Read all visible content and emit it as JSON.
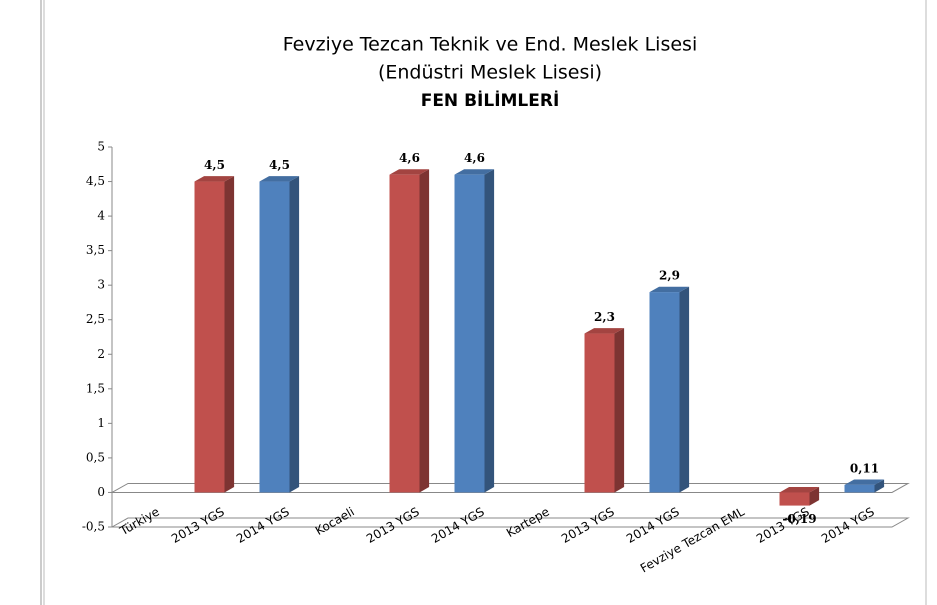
{
  "chart_data": {
    "type": "bar3d",
    "title": [
      "Fevziye Tezcan Teknik ve End. Meslek Lisesi",
      "(Endüstri Meslek Lisesi)",
      "FEN BİLİMLERİ"
    ],
    "categories": [
      "Türkiye",
      "2013 YGS",
      "2014 YGS",
      "Kocaeli",
      "2013 YGS",
      "2014 YGS",
      "Kartepe",
      "2013 YGS",
      "2014 YGS",
      "Fevziye Tezcan EML",
      "2013 YGS",
      "2014 YGS"
    ],
    "values": [
      null,
      4.5,
      4.5,
      null,
      4.6,
      4.6,
      null,
      2.3,
      2.9,
      null,
      -0.19,
      0.11
    ],
    "value_labels": [
      null,
      "4,5",
      "4,5",
      null,
      "4,6",
      "4,6",
      null,
      "2,3",
      "2,9",
      null,
      "-0,19",
      "0,11"
    ],
    "colors": [
      null,
      "#c0504d",
      "#4f81bd",
      null,
      "#c0504d",
      "#4f81bd",
      null,
      "#c0504d",
      "#4f81bd",
      null,
      "#c0504d",
      "#4f81bd"
    ],
    "ylim": [
      -0.5,
      5
    ],
    "yticks": [
      {
        "value": -0.5,
        "label": "-0,5"
      },
      0,
      {
        "value": 0.5,
        "label": "0,5"
      },
      1,
      {
        "value": 1.5,
        "label": "1,5"
      },
      2,
      {
        "value": 2.5,
        "label": "2,5"
      },
      3,
      {
        "value": 3.5,
        "label": "3,5"
      },
      4,
      {
        "value": 4.5,
        "label": "4,5"
      },
      5
    ],
    "grid": false
  }
}
